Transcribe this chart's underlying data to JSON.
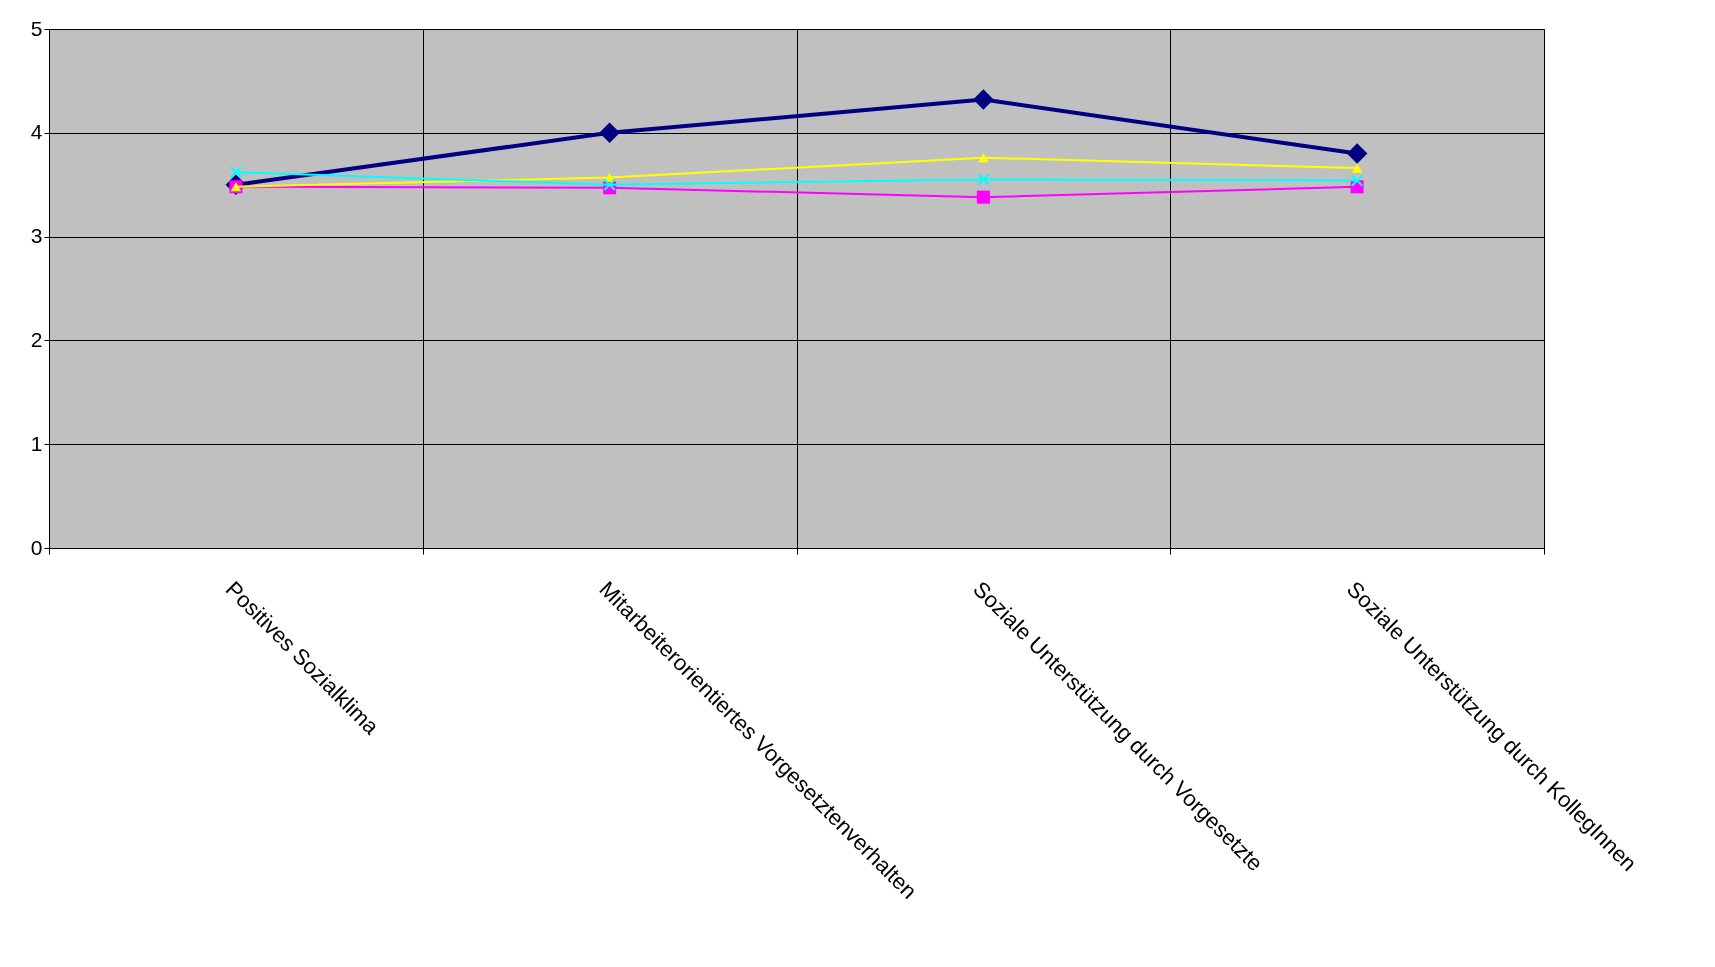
{
  "chart_data": {
    "type": "line",
    "categories": [
      "Positives Sozialklima",
      "Mitarbeiterorientiertes Vorgesetztenverhalten",
      "Soziale Unterstützung durch Vorgesetzte",
      "Soziale Unterstützung durch KollegInnen"
    ],
    "series": [
      {
        "color": "#000080",
        "marker": "diamond",
        "values": [
          3.5,
          4.0,
          4.32,
          3.8
        ]
      },
      {
        "color": "#ff00ff",
        "marker": "square",
        "values": [
          3.48,
          3.47,
          3.38,
          3.48
        ]
      },
      {
        "color": "#ffff00",
        "marker": "triangle",
        "values": [
          3.48,
          3.57,
          3.76,
          3.66
        ]
      },
      {
        "color": "#00ffff",
        "marker": "cross",
        "values": [
          3.62,
          3.5,
          3.55,
          3.54
        ]
      }
    ],
    "ylim": [
      0,
      5
    ],
    "yticks": [
      0,
      1,
      2,
      3,
      4,
      5
    ],
    "grid": true
  }
}
